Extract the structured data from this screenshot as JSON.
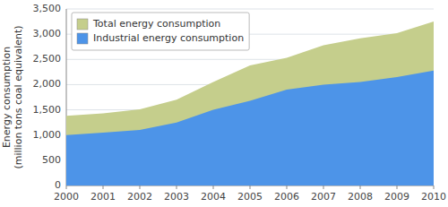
{
  "chart_data": {
    "type": "area",
    "ylabel": "Energy consumption\n(million tons coal equivalent)",
    "x": [
      2000,
      2001,
      2002,
      2003,
      2004,
      2005,
      2006,
      2007,
      2008,
      2009,
      2010
    ],
    "series": [
      {
        "name": "Total energy consumption",
        "color": "#c5ce8c",
        "values": [
          1380,
          1430,
          1510,
          1700,
          2050,
          2380,
          2530,
          2780,
          2920,
          3020,
          3250
        ]
      },
      {
        "name": "Industrial energy consumption",
        "color": "#4d94e8",
        "values": [
          1000,
          1050,
          1100,
          1250,
          1500,
          1680,
          1900,
          2000,
          2050,
          2150,
          2280
        ]
      }
    ],
    "xlim": [
      2000,
      2010
    ],
    "xticks": [
      2000,
      2001,
      2002,
      2003,
      2004,
      2005,
      2006,
      2007,
      2008,
      2009,
      2010
    ],
    "ylim": [
      0,
      3500
    ],
    "yticks": [
      0,
      500,
      {
        "value": 1000,
        "label": "1,000"
      },
      {
        "value": 1500,
        "label": "1,500"
      },
      {
        "value": 2000,
        "label": "2,000"
      },
      {
        "value": 2500,
        "label": "2,500"
      },
      {
        "value": 3000,
        "label": "3,000"
      },
      {
        "value": 3500,
        "label": "3,500"
      }
    ],
    "grid": true,
    "legend": "upper left"
  }
}
